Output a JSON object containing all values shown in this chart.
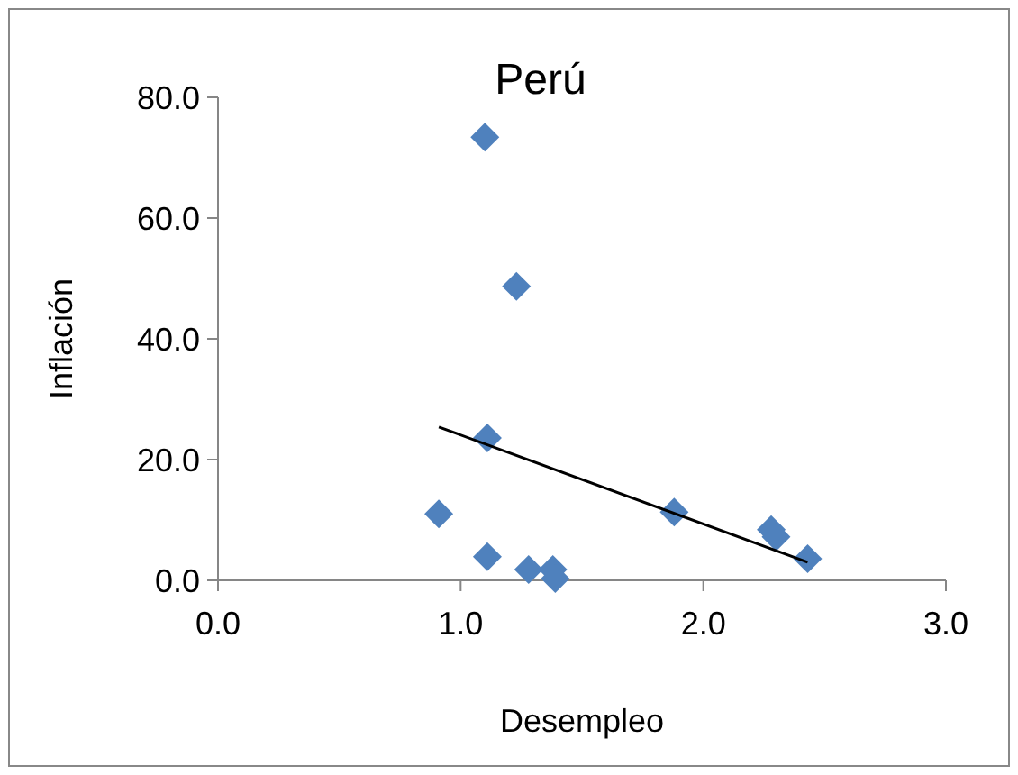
{
  "chart_data": {
    "type": "scatter",
    "title": "Perú",
    "xlabel": "Desempleo",
    "ylabel": "Inflación",
    "xlim": [
      0,
      3
    ],
    "xticks": [
      {
        "value": 0,
        "label": "0.0"
      },
      {
        "value": 1,
        "label": "1.0"
      },
      {
        "value": 2,
        "label": "2.0"
      },
      {
        "value": 3,
        "label": "3.0"
      }
    ],
    "ylim": [
      0,
      80
    ],
    "yticks": [
      {
        "value": 0,
        "label": "0.0"
      },
      {
        "value": 20,
        "label": "20.0"
      },
      {
        "value": 40,
        "label": "40.0"
      },
      {
        "value": 60,
        "label": "60.0"
      },
      {
        "value": 80,
        "label": "80.0"
      }
    ],
    "grid": false,
    "series": [
      {
        "color": "#4f81bd",
        "marker": "diamond",
        "x": [
          1.1,
          1.23,
          1.11,
          0.91,
          1.11,
          1.28,
          1.38,
          1.39,
          1.88,
          2.28,
          2.3,
          2.43
        ],
        "values": [
          73.4,
          48.7,
          23.6,
          11.0,
          3.9,
          1.8,
          1.8,
          0.3,
          11.3,
          8.4,
          7.2,
          3.6
        ]
      },
      {
        "type": "line",
        "color": "#000000",
        "marker": "none",
        "x": [
          0.91,
          2.43
        ],
        "values": [
          25.4,
          3.0
        ]
      }
    ]
  }
}
